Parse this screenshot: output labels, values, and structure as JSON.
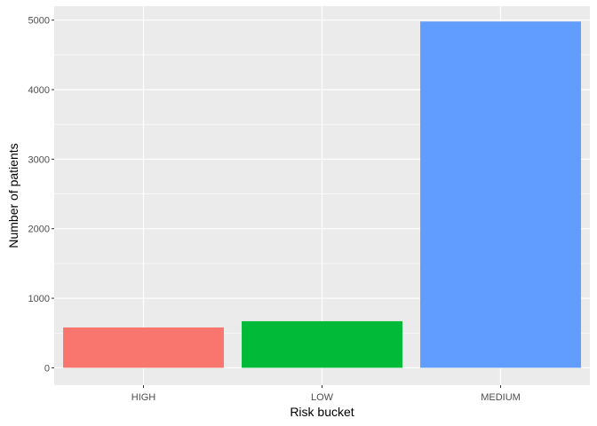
{
  "chart_data": {
    "type": "bar",
    "title": "",
    "xlabel": "Risk bucket",
    "ylabel": "Number of patients",
    "categories": [
      "HIGH",
      "LOW",
      "MEDIUM"
    ],
    "values": [
      580,
      670,
      4980
    ],
    "colors": [
      "#F8766D",
      "#00BA38",
      "#619CFF"
    ],
    "ylim": [
      -250,
      5200
    ],
    "yticks": [
      0,
      1000,
      2000,
      3000,
      4000,
      5000
    ],
    "ytick_labels": [
      "0",
      "1000",
      "2000",
      "3000",
      "4000",
      "5000"
    ],
    "grid": true,
    "legend": "none",
    "panel_background": "#EBEBEB",
    "grid_color": "#FFFFFF"
  }
}
